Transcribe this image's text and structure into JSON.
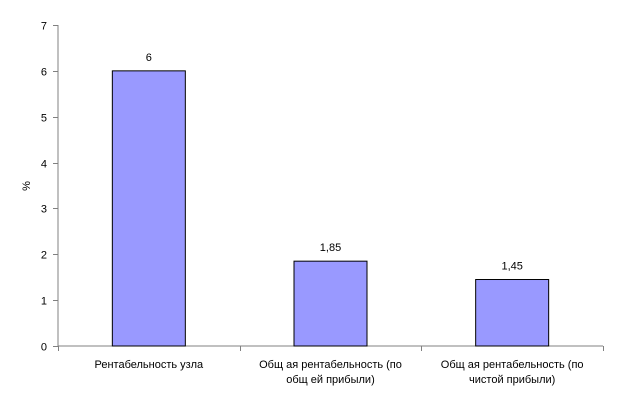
{
  "chart_data": {
    "type": "bar",
    "title": "",
    "xlabel": "",
    "ylabel": "%",
    "ylim": [
      0,
      7
    ],
    "yticks": [
      "0",
      "1",
      "2",
      "3",
      "4",
      "5",
      "6",
      "7"
    ],
    "grid": false,
    "legend": "none",
    "categories": [
      [
        "Рентабельность узла"
      ],
      [
        "Общ ая рентабельность (по",
        "общ ей прибыли)"
      ],
      [
        "Общ ая рентабельность (по",
        "чистой прибыли)"
      ]
    ],
    "values": [
      6,
      1.85,
      1.45
    ],
    "data_labels": [
      "6",
      "1,85",
      "1,45"
    ],
    "colors": {
      "bar_fill": "#9999ff",
      "bar_stroke": "#000000",
      "axis": "#808080"
    }
  }
}
